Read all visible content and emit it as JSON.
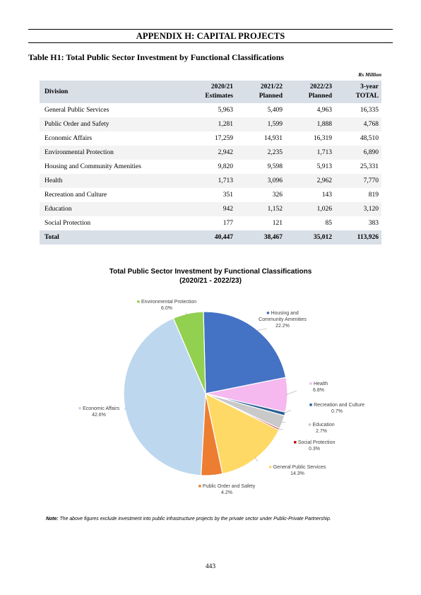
{
  "header": {
    "appendix_title": "APPENDIX H: CAPITAL PROJECTS",
    "table_title": "Table H1: Total Public Sector Investment by Functional Classifications",
    "unit": "Rs Million"
  },
  "table": {
    "columns": {
      "division": "Division",
      "c1": [
        "2020/21",
        "Estimates"
      ],
      "c2": [
        "2021/22",
        "Planned"
      ],
      "c3": [
        "2022/23",
        "Planned"
      ],
      "c4": [
        "3-year",
        "TOTAL"
      ]
    },
    "rows": [
      {
        "division": "General Public Services",
        "v1": "5,963",
        "v2": "5,409",
        "v3": "4,963",
        "total": "16,335"
      },
      {
        "division": "Public Order and Safety",
        "v1": "1,281",
        "v2": "1,599",
        "v3": "1,888",
        "total": "4,768"
      },
      {
        "division": "Economic Affairs",
        "v1": "17,259",
        "v2": "14,931",
        "v3": "16,319",
        "total": "48,510"
      },
      {
        "division": "Environmental Protection",
        "v1": "2,942",
        "v2": "2,235",
        "v3": "1,713",
        "total": "6,890"
      },
      {
        "division": "Housing and Community Amenities",
        "v1": "9,820",
        "v2": "9,598",
        "v3": "5,913",
        "total": "25,331"
      },
      {
        "division": "Health",
        "v1": "1,713",
        "v2": "3,096",
        "v3": "2,962",
        "total": "7,770"
      },
      {
        "division": "Recreation and Culture",
        "v1": "351",
        "v2": "326",
        "v3": "143",
        "total": "819"
      },
      {
        "division": "Education",
        "v1": "942",
        "v2": "1,152",
        "v3": "1,026",
        "total": "3,120"
      },
      {
        "division": "Social Protection",
        "v1": "177",
        "v2": "121",
        "v3": "85",
        "total": "383"
      }
    ],
    "total": {
      "division": "Total",
      "v1": "40,447",
      "v2": "38,467",
      "v3": "35,012",
      "total": "113,926"
    }
  },
  "chart_data": {
    "type": "pie",
    "title": "Total Public Sector Investment by Functional Classifications",
    "subtitle": "(2020/21 - 2022/23)",
    "slices": [
      {
        "label": "Housing and Community Amenities",
        "value": 22.2,
        "color": "#4472c4"
      },
      {
        "label": "Health",
        "value": 6.8,
        "color": "#f5b8ef"
      },
      {
        "label": "Recreation and Culture",
        "value": 0.7,
        "color": "#255e91"
      },
      {
        "label": "Education",
        "value": 2.7,
        "color": "#c9c9c9"
      },
      {
        "label": "Social Protection",
        "value": 0.3,
        "color": "#c00000"
      },
      {
        "label": "General Public Services",
        "value": 14.3,
        "color": "#ffd966"
      },
      {
        "label": "Public Order and Safety",
        "value": 4.2,
        "color": "#ed7d31"
      },
      {
        "label": "Economic Affairs",
        "value": 42.6,
        "color": "#bdd7ee"
      },
      {
        "label": "Environmental Protection",
        "value": 6.0,
        "color": "#92d050"
      }
    ]
  },
  "note": {
    "prefix": "Note:",
    "text": "The above figures exclude investment into public infrastructure projects by the private sector under Public-Private Partnership."
  },
  "page_number": "443"
}
